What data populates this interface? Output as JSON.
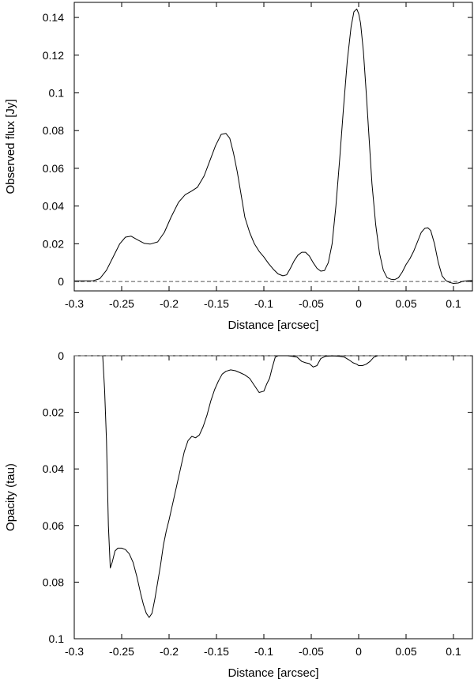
{
  "chart_data": [
    {
      "type": "line",
      "xlabel": "Distance [arcsec]",
      "ylabel": "Observed flux [Jy]",
      "xlim": [
        -0.3,
        0.12
      ],
      "ylim": [
        -0.005,
        0.148
      ],
      "y_inverted": false,
      "grid": false,
      "xticks": [
        -0.3,
        -0.25,
        -0.2,
        -0.15,
        -0.1,
        -0.05,
        0,
        0.05,
        0.1
      ],
      "xtick_labels": [
        "-0.3",
        "-0.25",
        "-0.2",
        "-0.15",
        "-0.1",
        "-0.05",
        "0",
        "0.05",
        "0.1"
      ],
      "yticks": [
        0,
        0.02,
        0.04,
        0.06,
        0.08,
        0.1,
        0.12,
        0.14
      ],
      "ytick_labels": [
        "0",
        "0.02",
        "0.04",
        "0.06",
        "0.08",
        "0.1",
        "0.12",
        "0.14"
      ],
      "reference_line": {
        "y": 0,
        "style": "dashed"
      },
      "series": [
        {
          "x": [
            -0.3,
            -0.28,
            -0.273,
            -0.266,
            -0.259,
            -0.252,
            -0.246,
            -0.24,
            -0.233,
            -0.226,
            -0.22,
            -0.212,
            -0.205,
            -0.198,
            -0.19,
            -0.183,
            -0.176,
            -0.17,
            -0.163,
            -0.157,
            -0.151,
            -0.145,
            -0.14,
            -0.136,
            -0.132,
            -0.128,
            -0.124,
            -0.12,
            -0.115,
            -0.11,
            -0.105,
            -0.1,
            -0.095,
            -0.09,
            -0.085,
            -0.08,
            -0.076,
            -0.072,
            -0.068,
            -0.064,
            -0.06,
            -0.056,
            -0.052,
            -0.048,
            -0.044,
            -0.04,
            -0.036,
            -0.032,
            -0.028,
            -0.024,
            -0.02,
            -0.016,
            -0.012,
            -0.008,
            -0.005,
            -0.002,
            0,
            0.002,
            0.005,
            0.008,
            0.011,
            0.014,
            0.018,
            0.022,
            0.026,
            0.03,
            0.034,
            0.038,
            0.042,
            0.046,
            0.05,
            0.054,
            0.058,
            0.062,
            0.066,
            0.07,
            0.073,
            0.076,
            0.08,
            0.084,
            0.088,
            0.092,
            0.096,
            0.1,
            0.105,
            0.11,
            0.115,
            0.12
          ],
          "y": [
            0.0003,
            0.0004,
            0.0015,
            0.006,
            0.013,
            0.02,
            0.0235,
            0.024,
            0.022,
            0.0202,
            0.0198,
            0.021,
            0.026,
            0.034,
            0.042,
            0.046,
            0.048,
            0.05,
            0.056,
            0.064,
            0.072,
            0.078,
            0.0785,
            0.076,
            0.068,
            0.058,
            0.046,
            0.034,
            0.026,
            0.02,
            0.016,
            0.013,
            0.0095,
            0.0065,
            0.004,
            0.003,
            0.0035,
            0.007,
            0.011,
            0.014,
            0.0155,
            0.0155,
            0.0135,
            0.01,
            0.007,
            0.0055,
            0.0058,
            0.01,
            0.02,
            0.04,
            0.065,
            0.092,
            0.117,
            0.135,
            0.143,
            0.1445,
            0.142,
            0.137,
            0.122,
            0.1,
            0.076,
            0.052,
            0.03,
            0.015,
            0.006,
            0.002,
            0.0012,
            0.001,
            0.002,
            0.005,
            0.009,
            0.012,
            0.016,
            0.021,
            0.026,
            0.0283,
            0.0285,
            0.027,
            0.02,
            0.01,
            0.003,
            0.0005,
            -0.0005,
            -0.001,
            -0.0008,
            0.0001,
            0.0004,
            0.0005
          ]
        }
      ]
    },
    {
      "type": "line",
      "xlabel": "Distance [arcsec]",
      "ylabel": "Opacity (tau)",
      "xlim": [
        -0.3,
        0.12
      ],
      "ylim": [
        0,
        0.1
      ],
      "y_inverted": true,
      "grid": false,
      "xticks": [
        -0.3,
        -0.25,
        -0.2,
        -0.15,
        -0.1,
        -0.05,
        0,
        0.05,
        0.1
      ],
      "xtick_labels": [
        "-0.3",
        "-0.25",
        "-0.2",
        "-0.15",
        "-0.1",
        "-0.05",
        "0",
        "0.05",
        "0.1"
      ],
      "yticks": [
        0,
        0.02,
        0.04,
        0.06,
        0.08,
        0.1
      ],
      "ytick_labels": [
        "0",
        "0.02",
        "0.04",
        "0.06",
        "0.08",
        "0.1"
      ],
      "reference_line": {
        "y": 0,
        "style": "dashed"
      },
      "series": [
        {
          "x": [
            -0.27,
            -0.268,
            -0.266,
            -0.264,
            -0.262,
            -0.26,
            -0.257,
            -0.254,
            -0.25,
            -0.246,
            -0.242,
            -0.238,
            -0.234,
            -0.23,
            -0.227,
            -0.224,
            -0.221,
            -0.218,
            -0.215,
            -0.212,
            -0.209,
            -0.206,
            -0.203,
            -0.2,
            -0.196,
            -0.192,
            -0.188,
            -0.184,
            -0.18,
            -0.176,
            -0.172,
            -0.168,
            -0.164,
            -0.16,
            -0.156,
            -0.152,
            -0.148,
            -0.144,
            -0.14,
            -0.135,
            -0.13,
            -0.125,
            -0.12,
            -0.115,
            -0.11,
            -0.105,
            -0.1,
            -0.097,
            -0.094,
            -0.091,
            -0.088,
            -0.085,
            -0.08,
            -0.075,
            -0.07,
            -0.065,
            -0.06,
            -0.056,
            -0.052,
            -0.048,
            -0.044,
            -0.04,
            -0.035,
            -0.03,
            -0.025,
            -0.02,
            -0.015,
            -0.01,
            -0.006,
            -0.002,
            0,
            0.004,
            0.008,
            0.012,
            0.016,
            0.02
          ],
          "y": [
            0,
            0.012,
            0.03,
            0.06,
            0.075,
            0.073,
            0.069,
            0.068,
            0.068,
            0.0685,
            0.07,
            0.073,
            0.078,
            0.084,
            0.088,
            0.091,
            0.0925,
            0.091,
            0.086,
            0.08,
            0.074,
            0.067,
            0.062,
            0.058,
            0.052,
            0.046,
            0.04,
            0.034,
            0.03,
            0.0285,
            0.029,
            0.028,
            0.025,
            0.021,
            0.016,
            0.012,
            0.009,
            0.0065,
            0.0055,
            0.005,
            0.0053,
            0.006,
            0.0068,
            0.008,
            0.0105,
            0.013,
            0.0125,
            0.01,
            0.008,
            0.004,
            0.0005,
            0,
            0,
            0,
            0.0002,
            0.0005,
            0.002,
            0.0025,
            0.0028,
            0.004,
            0.0035,
            0.001,
            0.0002,
            0.0001,
            0.0001,
            0.0002,
            0.0005,
            0.0015,
            0.0025,
            0.003,
            0.0035,
            0.0035,
            0.003,
            0.002,
            0.0005,
            0
          ]
        }
      ]
    }
  ]
}
